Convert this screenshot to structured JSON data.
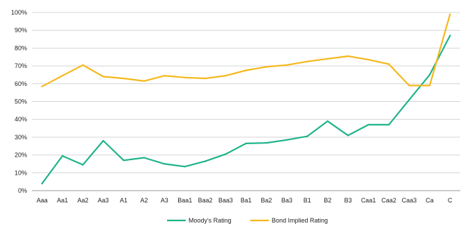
{
  "chart_data": {
    "type": "line",
    "categories": [
      "Aaa",
      "Aa1",
      "Aa2",
      "Aa3",
      "A1",
      "A2",
      "A3",
      "Baa1",
      "Baa2",
      "Baa3",
      "Ba1",
      "Ba2",
      "Ba3",
      "B1",
      "B2",
      "B3",
      "Caa1",
      "Caa2",
      "Caa3",
      "Ca",
      "C"
    ],
    "yticks": [
      "0%",
      "10%",
      "20%",
      "30%",
      "40%",
      "50%",
      "60%",
      "70%",
      "80%",
      "90%",
      "100%"
    ],
    "ylim": [
      0,
      100
    ],
    "grid": "horizontal",
    "legend_position": "bottom-center",
    "series": [
      {
        "name": "Moody's Rating",
        "color": "#1fb38a",
        "values": [
          4,
          19.5,
          14.5,
          28,
          17,
          18.5,
          15,
          13.5,
          16.5,
          20.5,
          26.5,
          26.8,
          28.5,
          30.5,
          39,
          31,
          37,
          37,
          51,
          65,
          87
        ]
      },
      {
        "name": "Bond Implied Rating",
        "color": "#f4b81c",
        "values": [
          58.5,
          64.5,
          70.5,
          64,
          63,
          61.5,
          64.5,
          63.5,
          63,
          64.5,
          67.5,
          69.5,
          70.5,
          72.5,
          74,
          75.5,
          73.5,
          71,
          59,
          59,
          99
        ]
      }
    ]
  }
}
